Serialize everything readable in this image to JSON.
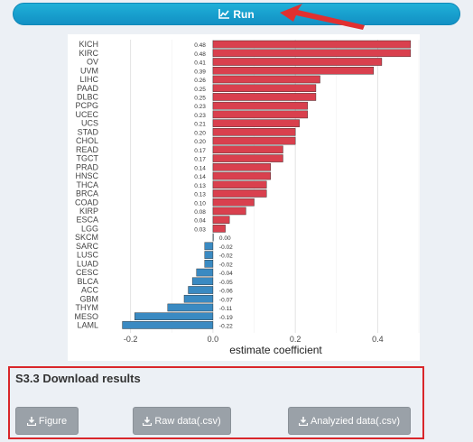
{
  "run_button": {
    "label": "Run",
    "icon": "line-chart-icon"
  },
  "chart_data": {
    "type": "bar",
    "orientation": "horizontal",
    "categories": [
      "KICH",
      "KIRC",
      "OV",
      "UVM",
      "LIHC",
      "PAAD",
      "DLBC",
      "PCPG",
      "UCEC",
      "UCS",
      "STAD",
      "CHOL",
      "READ",
      "TGCT",
      "PRAD",
      "HNSC",
      "THCA",
      "BRCA",
      "COAD",
      "KIRP",
      "ESCA",
      "LGG",
      "SKCM",
      "SARC",
      "LUSC",
      "LUAD",
      "CESC",
      "BLCA",
      "ACC",
      "GBM",
      "THYM",
      "MESO",
      "LAML"
    ],
    "values": [
      0.48,
      0.48,
      0.41,
      0.39,
      0.26,
      0.25,
      0.25,
      0.23,
      0.23,
      0.21,
      0.2,
      0.2,
      0.17,
      0.17,
      0.14,
      0.14,
      0.13,
      0.13,
      0.1,
      0.08,
      0.04,
      0.03,
      0.0,
      -0.02,
      -0.02,
      -0.02,
      -0.04,
      -0.05,
      -0.06,
      -0.07,
      -0.11,
      -0.19,
      -0.22
    ],
    "value_labels": [
      "0.48",
      "0.48",
      "0.41",
      "0.39",
      "0.26",
      "0.25",
      "0.25",
      "0.23",
      "0.23",
      "0.21",
      "0.20",
      "0.20",
      "0.17",
      "0.17",
      "0.14",
      "0.14",
      "0.13",
      "0.13",
      "0.10",
      "0.08",
      "0.04",
      "0.03",
      "0.00",
      "-0.02",
      "-0.02",
      "-0.02",
      "-0.04",
      "-0.05",
      "-0.06",
      "-0.07",
      "-0.11",
      "-0.19",
      "-0.22"
    ],
    "xlabel": "estimate coefficient",
    "xlim": [
      -0.23,
      0.5
    ],
    "xticks": [
      -0.2,
      0.0,
      0.2,
      0.4
    ],
    "xtick_labels": [
      "-0.2",
      "0.0",
      "0.2",
      "0.4"
    ],
    "grid": true,
    "colors": {
      "positive": "#d9404e",
      "negative": "#3a8ac2",
      "bar_border": "#222222"
    }
  },
  "download": {
    "title": "S3.3 Download results",
    "buttons": [
      {
        "label": "Figure",
        "icon": "download-icon"
      },
      {
        "label": "Raw data(.csv)",
        "icon": "download-icon"
      },
      {
        "label": "Analyzied data(.csv)",
        "icon": "download-icon"
      }
    ]
  },
  "colors": {
    "run_button": "#1a9fd0",
    "annotation": "#e03030",
    "highlight_border": "#d9262a",
    "download_button": "#9aa1a8"
  }
}
